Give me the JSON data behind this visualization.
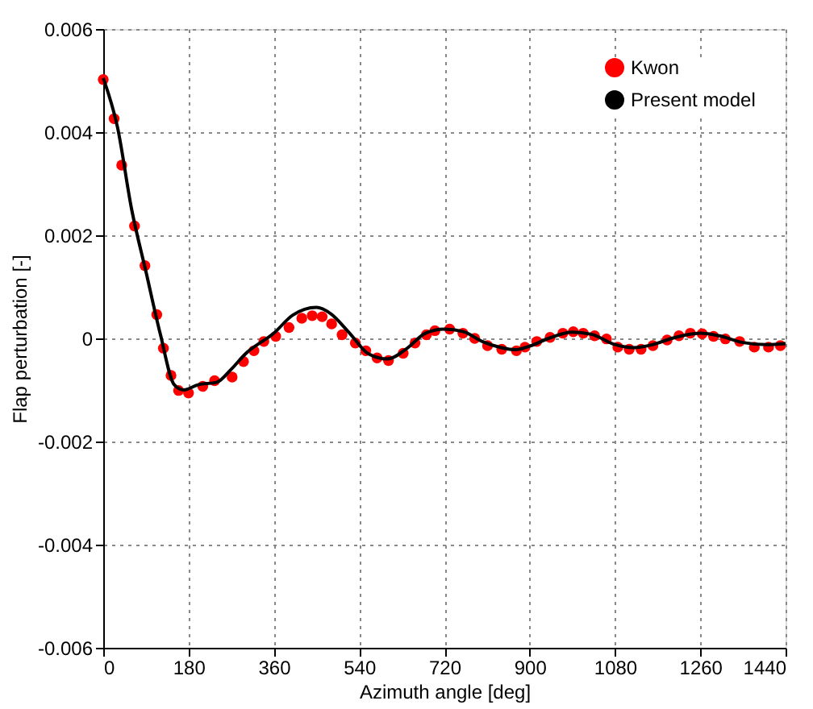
{
  "chart_data": {
    "type": "line",
    "xlabel": "Azimuth angle [deg]",
    "ylabel": "Flap perturbation [-]",
    "xlim": [
      0,
      1440
    ],
    "xticks": [
      0,
      180,
      360,
      540,
      720,
      900,
      1080,
      1260,
      1440
    ],
    "ylim": [
      -0.006,
      0.006
    ],
    "yticks": [
      -0.006,
      -0.004,
      -0.002,
      0,
      0.002,
      0.004,
      0.006
    ],
    "grid": true,
    "legend": "top right",
    "series": [
      {
        "name": "Kwon",
        "type": "scatter",
        "marker": "circle",
        "color": "#ff0000",
        "x": [
          0,
          23,
          39,
          66,
          88,
          113,
          127,
          143,
          159,
          180,
          210,
          235,
          272,
          296,
          318,
          339,
          364,
          392,
          419,
          441,
          462,
          482,
          504,
          532,
          554,
          578,
          602,
          633,
          658,
          682,
          700,
          731,
          759,
          784,
          811,
          841,
          872,
          890,
          915,
          943,
          970,
          992,
          1013,
          1037,
          1062,
          1086,
          1110,
          1135,
          1160,
          1190,
          1215,
          1239,
          1264,
          1288,
          1313,
          1343,
          1374,
          1404,
          1429
        ],
        "values": [
          0.00502,
          0.00426,
          0.00336,
          0.00218,
          0.00141,
          0.00046,
          -0.00019,
          -0.00072,
          -0.00101,
          -0.00106,
          -0.00093,
          -0.00082,
          -0.00075,
          -0.00045,
          -0.00024,
          -6e-05,
          4e-05,
          0.00021,
          0.00039,
          0.00044,
          0.00042,
          0.00028,
          7e-05,
          -9e-05,
          -0.00024,
          -0.00038,
          -0.00043,
          -0.00029,
          -9e-05,
          7e-05,
          0.00015,
          0.00018,
          0.0001,
          0,
          -0.00014,
          -0.00021,
          -0.00024,
          -0.00017,
          -6e-05,
          2e-05,
          0.0001,
          0.00013,
          0.0001,
          5e-05,
          -1e-05,
          -0.00017,
          -0.00021,
          -0.00021,
          -0.00014,
          -3e-05,
          5e-05,
          0.0001,
          9e-05,
          4e-05,
          -1e-05,
          -6e-05,
          -0.00017,
          -0.00017,
          -0.00014
        ]
      },
      {
        "name": "Present model",
        "line_style": "solid",
        "color": "#000000",
        "x": [
          0,
          30,
          60,
          90,
          120,
          150,
          170,
          200,
          240,
          270,
          300,
          360,
          400,
          450,
          480,
          520,
          560,
          600,
          640,
          680,
          720,
          760,
          800,
          840,
          870,
          900,
          940,
          990,
          1030,
          1080,
          1120,
          1160,
          1200,
          1260,
          1300,
          1350,
          1400,
          1440
        ],
        "values": [
          0.00505,
          0.0041,
          0.0025,
          0.0013,
          0.0001,
          -0.0009,
          -0.001,
          -0.0009,
          -0.00085,
          -0.0006,
          -0.0003,
          0.0001,
          0.00045,
          0.0006,
          0.00048,
          0.0001,
          -0.0003,
          -0.0004,
          -0.0002,
          0.0001,
          0.00018,
          0.00013,
          -6e-05,
          -0.00018,
          -0.00022,
          -0.00015,
          0,
          0.00012,
          8e-05,
          -0.00012,
          -0.00018,
          -0.00012,
          0,
          0.0001,
          5e-05,
          -8e-05,
          -0.00012,
          -0.0001
        ]
      }
    ]
  }
}
